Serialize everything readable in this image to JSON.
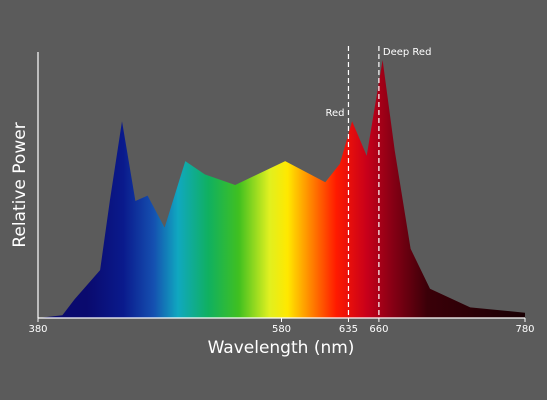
{
  "chart_data": {
    "type": "area",
    "x_label": "Wavelength (nm)",
    "y_label": "Relative Power",
    "x": [
      380,
      400,
      410,
      431,
      439,
      449,
      460,
      470,
      484,
      501,
      517,
      542,
      583,
      616,
      628,
      638,
      650,
      663,
      673,
      686,
      702,
      735,
      780
    ],
    "values": [
      0,
      0.01,
      0.07,
      0.18,
      0.44,
      0.74,
      0.44,
      0.46,
      0.34,
      0.59,
      0.54,
      0.5,
      0.59,
      0.51,
      0.58,
      0.74,
      0.61,
      0.97,
      0.63,
      0.26,
      0.11,
      0.04,
      0.02
    ],
    "xlim": [
      380,
      780
    ],
    "ylim": [
      0,
      1
    ],
    "xticks": [
      380,
      580,
      635,
      660,
      780
    ],
    "annotations": [
      {
        "x": 635,
        "label": "Red"
      },
      {
        "x": 660,
        "label": "Deep Red"
      }
    ],
    "gradient": [
      {
        "x": 420,
        "color": "#0a0a6e"
      },
      {
        "x": 450,
        "color": "#0a1a8c"
      },
      {
        "x": 475,
        "color": "#1550b0"
      },
      {
        "x": 495,
        "color": "#10a8c0"
      },
      {
        "x": 520,
        "color": "#10b060"
      },
      {
        "x": 545,
        "color": "#40c020"
      },
      {
        "x": 570,
        "color": "#e0f020"
      },
      {
        "x": 585,
        "color": "#ffe800"
      },
      {
        "x": 605,
        "color": "#ff8000"
      },
      {
        "x": 625,
        "color": "#ff1a00"
      },
      {
        "x": 650,
        "color": "#c8001a"
      },
      {
        "x": 670,
        "color": "#8a0015"
      },
      {
        "x": 700,
        "color": "#3a0008"
      },
      {
        "x": 780,
        "color": "#1a0004"
      }
    ],
    "background": "#5b5b5b",
    "axis_color": "#ffffff"
  }
}
